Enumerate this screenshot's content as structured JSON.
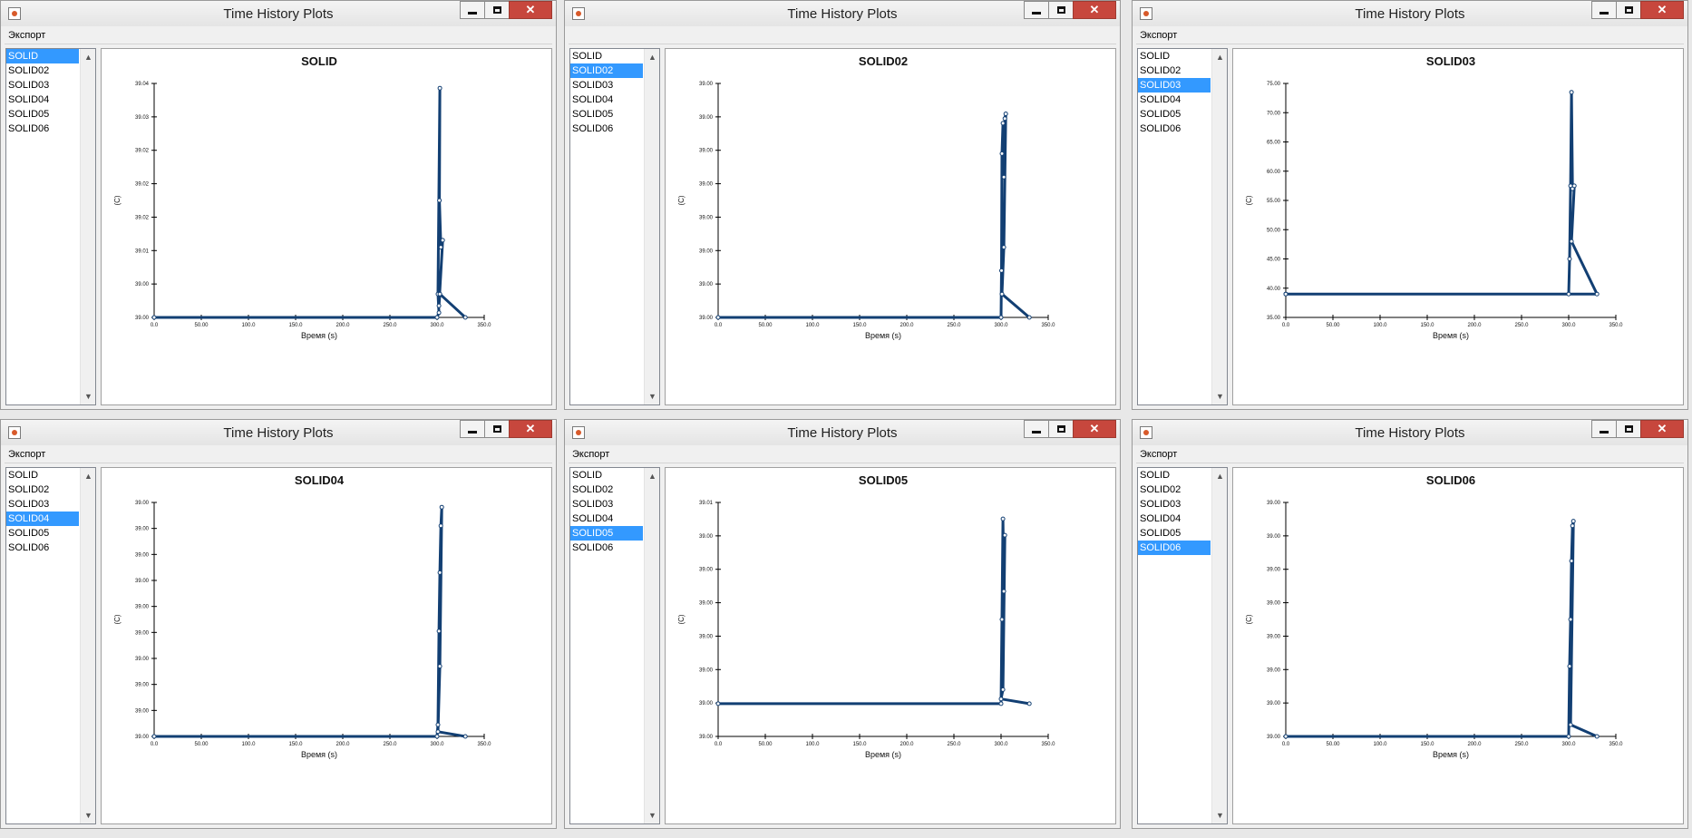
{
  "windows": [
    {
      "id": "w1",
      "title": "Time History Plots",
      "menu": [
        "Экспорт"
      ],
      "list_items": [
        "SOLID",
        "SOLID02",
        "SOLID03",
        "SOLID04",
        "SOLID05",
        "SOLID06"
      ],
      "selected_index": 0,
      "chart_data": {
        "type": "line",
        "title": "SOLID",
        "xlabel": "Время (s)",
        "ylabel": "(C)",
        "xlim": [
          0,
          350
        ],
        "x_ticks": [
          "0.0",
          "50.00",
          "100.0",
          "150.0",
          "200.0",
          "250.0",
          "300.0",
          "350.0"
        ],
        "y_ticks": [
          "39.00",
          "39.00",
          "39.01",
          "39.02",
          "39.02",
          "39.02",
          "39.03",
          "39.04"
        ],
        "color": "#123f73",
        "series": [
          {
            "values": [
              [
                0,
                0
              ],
              [
                300,
                0
              ],
              [
                302,
                0.02
              ],
              [
                301,
                0.1
              ],
              [
                303,
                0.98
              ],
              [
                302.5,
                0.5
              ],
              [
                304,
                0.3
              ],
              [
                306,
                0.33
              ],
              [
                302,
                0.05
              ],
              [
                303,
                0.1
              ],
              [
                330,
                0
              ]
            ]
          }
        ]
      }
    },
    {
      "id": "w2",
      "title": "Time History Plots",
      "menu": [],
      "list_items": [
        "SOLID",
        "SOLID02",
        "SOLID03",
        "SOLID04",
        "SOLID05",
        "SOLID06"
      ],
      "selected_index": 1,
      "chart_data": {
        "type": "line",
        "title": "SOLID02",
        "xlabel": "Время (s)",
        "ylabel": "(C)",
        "xlim": [
          0,
          350
        ],
        "x_ticks": [
          "0.0",
          "50.00",
          "100.0",
          "150.0",
          "200.0",
          "250.0",
          "300.0",
          "350.0"
        ],
        "y_ticks": [
          "39.00",
          "39.00",
          "39.00",
          "39.00",
          "39.00",
          "39.00",
          "39.00",
          "39.00"
        ],
        "color": "#123f73",
        "series": [
          {
            "values": [
              [
                0,
                0
              ],
              [
                300,
                0
              ],
              [
                300.5,
                0.2
              ],
              [
                301,
                0.7
              ],
              [
                302,
                0.83
              ],
              [
                303,
                0.6
              ],
              [
                304,
                0.85
              ],
              [
                305,
                0.87
              ],
              [
                303,
                0.3
              ],
              [
                301,
                0.1
              ],
              [
                330,
                0
              ]
            ]
          }
        ]
      }
    },
    {
      "id": "w3",
      "title": "Time History Plots",
      "menu": [
        "Экспорт"
      ],
      "list_items": [
        "SOLID",
        "SOLID02",
        "SOLID03",
        "SOLID04",
        "SOLID05",
        "SOLID06"
      ],
      "selected_index": 2,
      "chart_data": {
        "type": "line",
        "title": "SOLID03",
        "xlabel": "Время (s)",
        "ylabel": "(C)",
        "xlim": [
          0,
          350
        ],
        "ylim": [
          35,
          75
        ],
        "x_ticks": [
          "0.0",
          "50.00",
          "100.0",
          "150.0",
          "200.0",
          "250.0",
          "300.0",
          "350.0"
        ],
        "y_ticks": [
          "35.00",
          "40.00",
          "45.00",
          "50.00",
          "55.00",
          "60.00",
          "65.00",
          "70.00",
          "75.00"
        ],
        "color": "#123f73",
        "series": [
          {
            "values": [
              [
                0,
                39
              ],
              [
                300,
                39
              ],
              [
                301,
                45
              ],
              [
                302,
                57.5
              ],
              [
                303,
                73.5
              ],
              [
                304,
                57
              ],
              [
                306,
                57.5
              ],
              [
                303,
                48
              ],
              [
                330,
                39
              ],
              [
                0,
                39
              ]
            ]
          }
        ]
      }
    },
    {
      "id": "w4",
      "title": "Time History Plots",
      "menu": [
        "Экспорт"
      ],
      "list_items": [
        "SOLID",
        "SOLID02",
        "SOLID03",
        "SOLID04",
        "SOLID05",
        "SOLID06"
      ],
      "selected_index": 3,
      "chart_data": {
        "type": "line",
        "title": "SOLID04",
        "xlabel": "Время (s)",
        "ylabel": "(C)",
        "xlim": [
          0,
          350
        ],
        "x_ticks": [
          "0.0",
          "50.00",
          "100.0",
          "150.0",
          "200.0",
          "250.0",
          "300.0",
          "350.0"
        ],
        "y_ticks": [
          "39.00",
          "39.00",
          "39.00",
          "39.00",
          "39.00",
          "39.00",
          "39.00",
          "39.00",
          "39.00",
          "39.00"
        ],
        "color": "#123f73",
        "series": [
          {
            "values": [
              [
                0,
                0
              ],
              [
                300,
                0
              ],
              [
                301,
                0.05
              ],
              [
                302,
                0.45
              ],
              [
                303,
                0.7
              ],
              [
                304,
                0.9
              ],
              [
                305,
                0.98
              ],
              [
                303,
                0.3
              ],
              [
                301,
                0.02
              ],
              [
                330,
                0
              ]
            ]
          }
        ]
      }
    },
    {
      "id": "w5",
      "title": "Time History Plots",
      "menu": [
        "Экспорт"
      ],
      "list_items": [
        "SOLID",
        "SOLID02",
        "SOLID03",
        "SOLID04",
        "SOLID05",
        "SOLID06"
      ],
      "selected_index": 4,
      "chart_data": {
        "type": "line",
        "title": "SOLID05",
        "xlabel": "Время (s)",
        "ylabel": "(C)",
        "xlim": [
          0,
          350
        ],
        "x_ticks": [
          "0.0",
          "50.00",
          "100.0",
          "150.0",
          "200.0",
          "250.0",
          "300.0",
          "350.0"
        ],
        "y_ticks": [
          "39.00",
          "39.00",
          "39.00",
          "39.00",
          "39.00",
          "39.00",
          "39.00",
          "39.01"
        ],
        "color": "#123f73",
        "series": [
          {
            "values": [
              [
                0,
                0.14
              ],
              [
                300,
                0.14
              ],
              [
                301,
                0.5
              ],
              [
                302,
                0.93
              ],
              [
                303,
                0.62
              ],
              [
                304,
                0.86
              ],
              [
                302,
                0.2
              ],
              [
                300,
                0.16
              ],
              [
                330,
                0.14
              ]
            ]
          }
        ]
      }
    },
    {
      "id": "w6",
      "title": "Time History Plots",
      "menu": [
        "Экспорт"
      ],
      "list_items": [
        "SOLID",
        "SOLID02",
        "SOLID03",
        "SOLID04",
        "SOLID05",
        "SOLID06"
      ],
      "selected_index": 5,
      "chart_data": {
        "type": "line",
        "title": "SOLID06",
        "xlabel": "Время (s)",
        "ylabel": "(C)",
        "xlim": [
          0,
          350
        ],
        "x_ticks": [
          "0.0",
          "50.00",
          "100.0",
          "150.0",
          "200.0",
          "250.0",
          "300.0",
          "350.0"
        ],
        "y_ticks": [
          "39.00",
          "39.00",
          "39.00",
          "39.00",
          "39.00",
          "39.00",
          "39.00",
          "39.00"
        ],
        "color": "#123f73",
        "series": [
          {
            "values": [
              [
                0,
                0
              ],
              [
                300,
                0
              ],
              [
                301,
                0.3
              ],
              [
                302,
                0.5
              ],
              [
                303,
                0.75
              ],
              [
                304,
                0.9
              ],
              [
                305,
                0.92
              ],
              [
                302,
                0.05
              ],
              [
                330,
                0
              ]
            ]
          }
        ]
      }
    }
  ]
}
